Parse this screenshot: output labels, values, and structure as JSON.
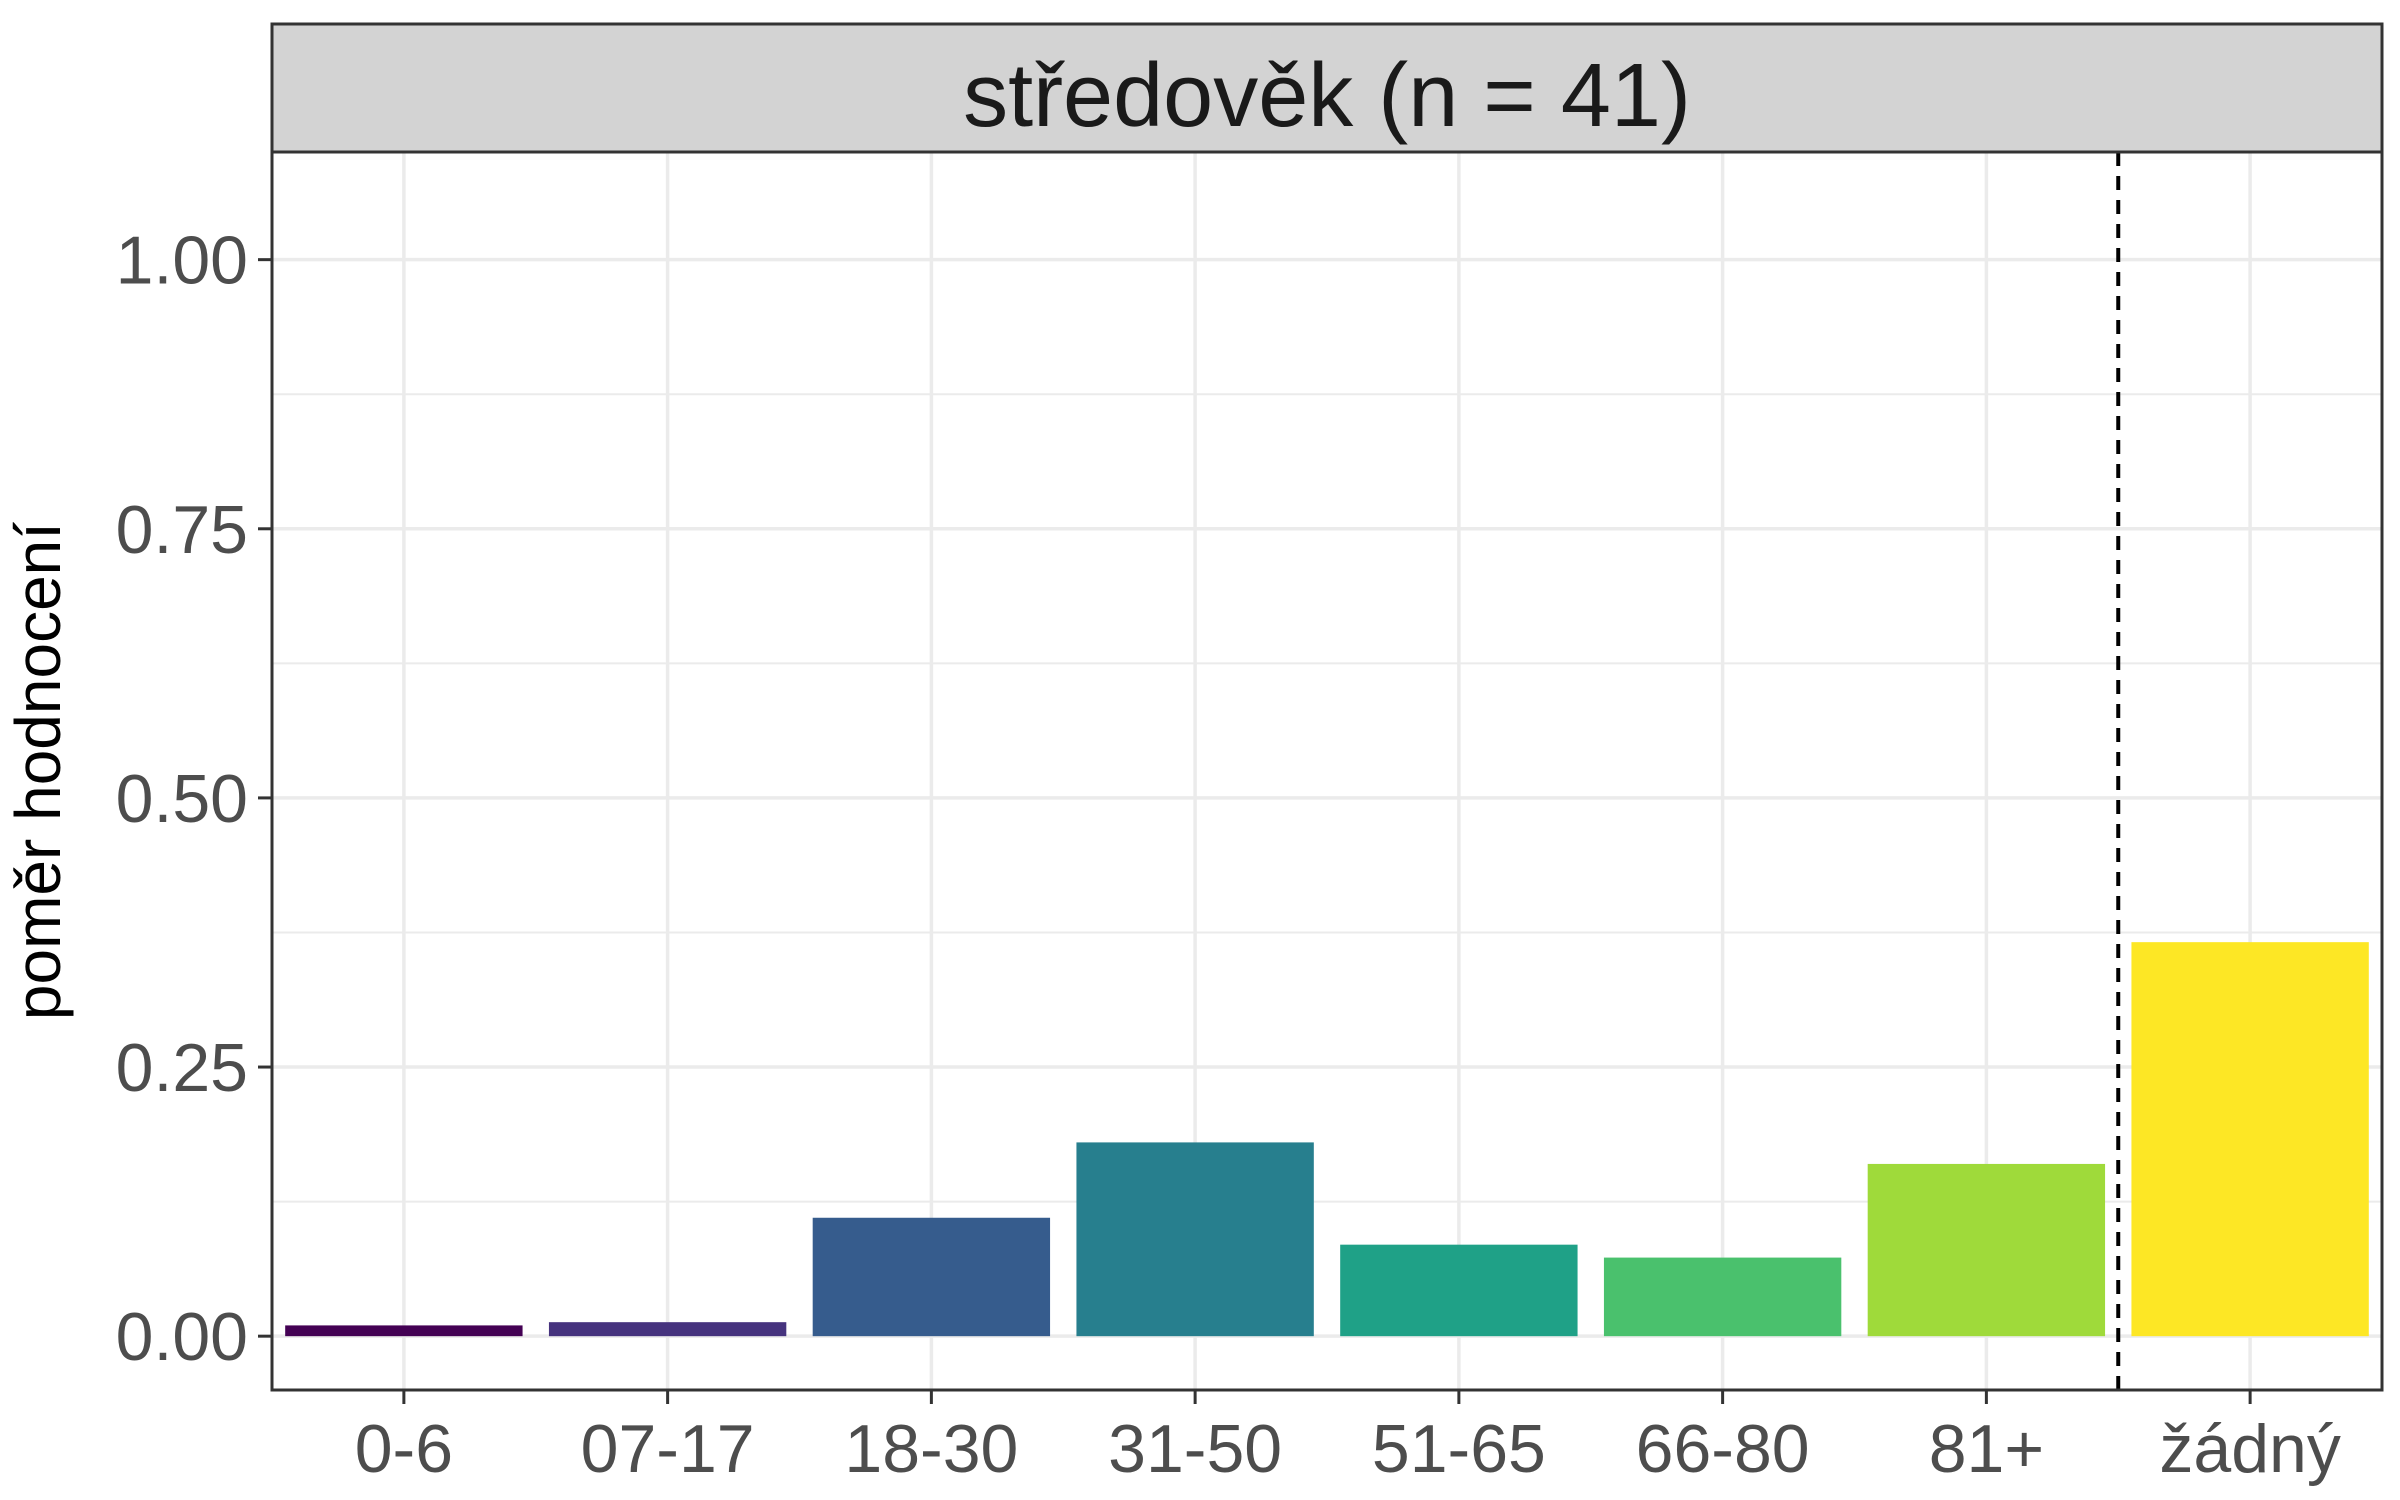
{
  "chart_data": {
    "type": "bar",
    "facet_title": "středověk (n = 41)",
    "ylabel": "poměr hodnocení",
    "xlabel": "",
    "categories": [
      "0-6",
      "07-17",
      "18-30",
      "31-50",
      "51-65",
      "66-80",
      "81+",
      "žádný"
    ],
    "values": [
      0.01,
      0.013,
      0.11,
      0.18,
      0.085,
      0.073,
      0.16,
      0.366
    ],
    "colors": [
      "#440154",
      "#46337E",
      "#365C8D",
      "#277F8E",
      "#1FA187",
      "#4AC16D",
      "#9FDA3A",
      "#FDE725"
    ],
    "ylim": [
      -0.05,
      1.1
    ],
    "yticks": [
      0.0,
      0.25,
      0.5,
      0.75,
      1.0
    ],
    "ytick_labels": [
      "0.00",
      "0.25",
      "0.50",
      "0.75",
      "1.00"
    ],
    "grid": true,
    "reference_line": {
      "style": "dashed",
      "between": [
        "81+",
        "žádný"
      ]
    },
    "colors_theme": {
      "strip_fill": "#d3d3d3",
      "grid": "#ebebeb",
      "border": "#333333"
    }
  }
}
